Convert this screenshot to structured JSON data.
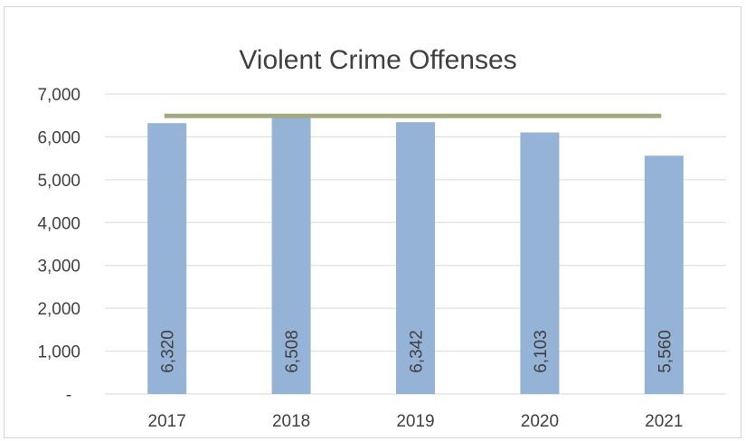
{
  "chart_data": {
    "type": "bar",
    "title": "Violent Crime Offenses",
    "categories": [
      "2017",
      "2018",
      "2019",
      "2020",
      "2021"
    ],
    "values": [
      6320,
      6508,
      6342,
      6103,
      5560
    ],
    "data_labels": [
      "6,320",
      "6,508",
      "6,342",
      "6,103",
      "5,560"
    ],
    "average_line": 6320,
    "ylim": [
      0,
      7000
    ],
    "yticks": [
      0,
      1000,
      2000,
      3000,
      4000,
      5000,
      6000,
      7000
    ],
    "ytick_labels": [
      "-",
      "1,000",
      "2,000",
      "3,000",
      "4,000",
      "5,000",
      "6,000",
      "7,000"
    ],
    "xlabel": "",
    "ylabel": "",
    "grid": true,
    "legend": "none",
    "colors": {
      "bar": "#95b3d7",
      "average_line": "#a5a97f",
      "grid": "#d9d9d9"
    }
  }
}
